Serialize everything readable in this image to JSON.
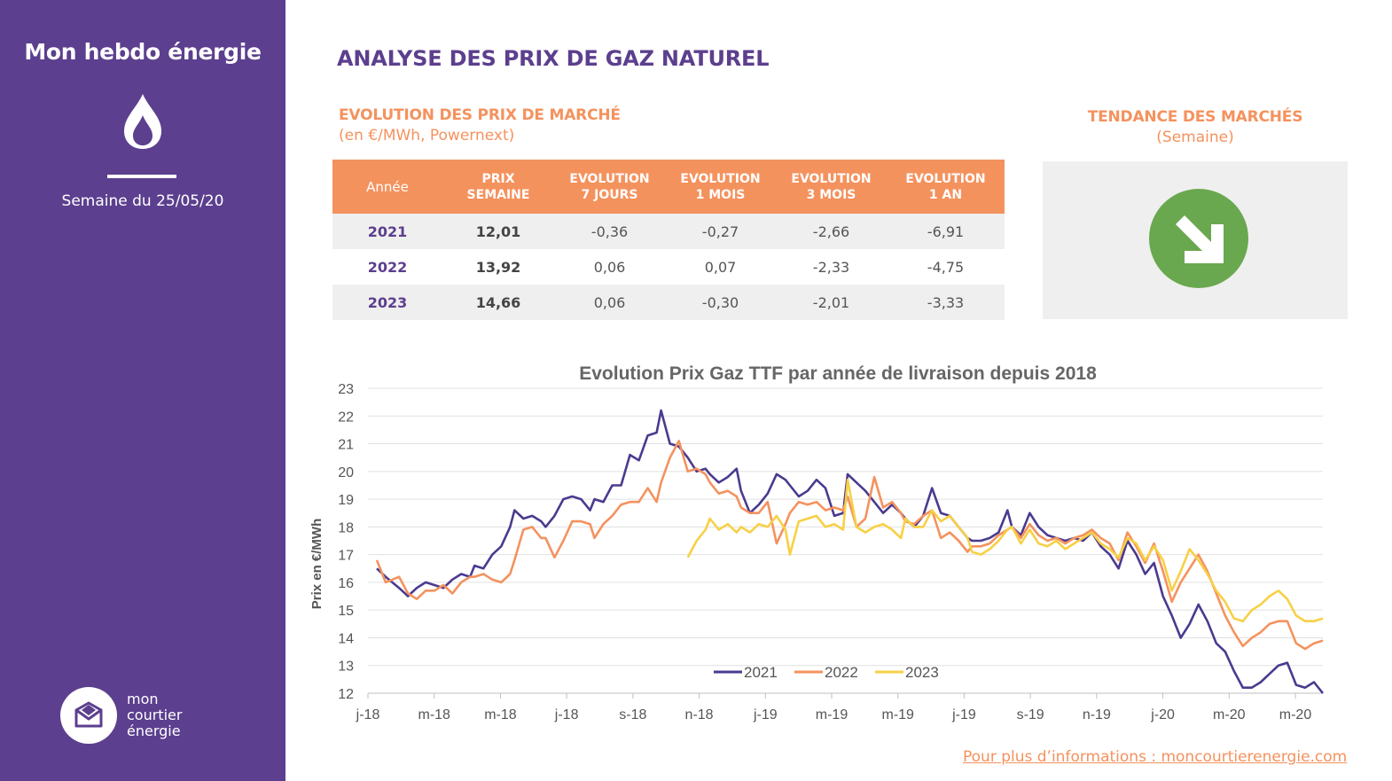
{
  "sidebar": {
    "title": "Mon hebdo énergie",
    "week_label": "Semaine du 25/05/20",
    "logo_lines": [
      "mon",
      "courtier",
      "énergie"
    ]
  },
  "main_title": "ANALYSE DES PRIX DE GAZ NATUREL",
  "market": {
    "title": "EVOLUTION DES PRIX DE MARCHÉ",
    "subtitle": "(en €/MWh, Powernext)",
    "headers": [
      [
        "Année"
      ],
      [
        "PRIX",
        "SEMAINE"
      ],
      [
        "EVOLUTION",
        "7 JOURS"
      ],
      [
        "EVOLUTION",
        "1 MOIS"
      ],
      [
        "EVOLUTION",
        "3 MOIS"
      ],
      [
        "EVOLUTION",
        "1 AN"
      ]
    ],
    "rows": [
      {
        "year": "2021",
        "price": "12,01",
        "d7": "-0,36",
        "m1": "-0,27",
        "m3": "-2,66",
        "y1": "-6,91"
      },
      {
        "year": "2022",
        "price": "13,92",
        "d7": "0,06",
        "m1": "0,07",
        "m3": "-2,33",
        "y1": "-4,75"
      },
      {
        "year": "2023",
        "price": "14,66",
        "d7": "0,06",
        "m1": "-0,30",
        "m3": "-2,01",
        "y1": "-3,33"
      }
    ]
  },
  "trend": {
    "title": "TENDANCE DES MARCHÉS",
    "subtitle": "(Semaine)",
    "direction": "down",
    "icon": "arrow-down-right-icon",
    "color": "#6aa84f"
  },
  "footer_link": "Pour plus d’informations : moncourtierenergie.com",
  "colors": {
    "purple": "#5c3f8e",
    "orange": "#f4925e",
    "series_2021": "#4b3a8f",
    "series_2022": "#f4925e",
    "series_2023": "#f7d046"
  },
  "chart_data": {
    "type": "line",
    "title": "Evolution Prix Gaz TTF par année de livraison depuis 2018",
    "xlabel": "",
    "ylabel": "Prix en €/MWh",
    "ylim": [
      12,
      23
    ],
    "yticks": [
      12,
      13,
      14,
      15,
      16,
      17,
      18,
      19,
      20,
      21,
      22,
      23
    ],
    "grid": true,
    "legend": "bottom-center",
    "x_tick_labels": [
      "j-18",
      "m-18",
      "m-18",
      "j-18",
      "s-18",
      "n-18",
      "j-19",
      "m-19",
      "m-19",
      "j-19",
      "s-19",
      "n-19",
      "j-20",
      "m-20",
      "m-20"
    ],
    "x_domain": [
      0,
      145
    ],
    "series": [
      {
        "name": "2021",
        "color": "#4b3a8f",
        "x": [
          2,
          4,
          7,
          9,
          11,
          13,
          15,
          17,
          19,
          21,
          23,
          24,
          26,
          28,
          30,
          32,
          33,
          35,
          37,
          39,
          40,
          42,
          44,
          46,
          48,
          50,
          51,
          53,
          55,
          57,
          59,
          61,
          63,
          65,
          66,
          68,
          70,
          72,
          74,
          76,
          77,
          79,
          81,
          83,
          84,
          86,
          88,
          90,
          92,
          94,
          95,
          97,
          99,
          101,
          103,
          105,
          107,
          108,
          110,
          112,
          114,
          116,
          118,
          120,
          121,
          123,
          125,
          127,
          129,
          131,
          133,
          135,
          136,
          138,
          140,
          142,
          144,
          145
        ],
        "y": [
          16.5,
          16.2,
          15.8,
          15.5,
          15.8,
          16.0,
          15.9,
          15.8,
          16.1,
          16.3,
          16.2,
          16.6,
          16.5,
          17.0,
          17.3,
          18.0,
          18.6,
          18.3,
          18.4,
          18.2,
          18.0,
          18.4,
          19.0,
          19.1,
          19.0,
          18.6,
          19.0,
          18.9,
          19.5,
          19.5,
          20.6,
          20.4,
          21.3,
          21.4,
          22.2,
          21.0,
          20.9,
          20.5,
          20.0,
          20.1,
          19.9,
          19.6,
          19.8,
          20.1,
          19.3,
          18.5,
          18.8,
          19.2,
          19.9,
          19.7,
          19.5,
          19.1,
          19.3,
          19.7,
          19.4,
          18.4,
          18.5,
          19.9,
          19.6,
          19.3,
          18.9,
          18.5,
          18.8,
          18.5,
          18.3,
          18.0,
          18.4,
          19.4,
          18.5,
          18.4,
          18.0,
          17.6,
          17.5,
          17.5,
          17.6,
          17.8,
          18.6,
          18.0
        ],
        "x2": [
          145,
          147,
          149,
          151,
          153,
          155,
          157,
          159,
          161,
          163,
          165,
          167,
          169,
          171,
          173,
          175,
          177,
          179,
          181,
          183,
          185,
          187,
          189,
          191,
          193,
          195,
          197,
          199,
          201,
          203,
          205,
          207,
          209,
          211,
          213,
          215
        ],
        "y2": [
          18.0,
          17.7,
          18.5,
          18.0,
          17.7,
          17.6,
          17.5,
          17.6,
          17.5,
          17.8,
          17.3,
          17.0,
          16.5,
          17.5,
          17.0,
          16.3,
          16.7,
          15.5,
          14.8,
          14.0,
          14.5,
          15.2,
          14.6,
          13.8,
          13.5,
          12.8,
          12.2,
          12.2,
          12.4,
          12.7,
          13.0,
          13.1,
          12.3,
          12.2,
          12.4,
          12.0
        ]
      },
      {
        "name": "2022",
        "color": "#f4925e",
        "x": [
          2,
          4,
          7,
          9,
          11,
          13,
          15,
          17,
          19,
          21,
          23,
          24,
          26,
          28,
          30,
          32,
          33,
          35,
          37,
          39,
          40,
          42,
          44,
          46,
          48,
          50,
          51,
          53,
          55,
          57,
          59,
          61,
          63,
          65,
          66,
          68,
          70,
          72,
          74,
          76,
          77,
          79,
          81,
          83,
          84,
          86,
          88,
          90,
          92,
          94,
          95,
          97,
          99,
          101,
          103,
          105,
          107,
          108,
          110,
          112,
          114,
          116,
          118,
          120,
          121,
          123,
          125,
          127,
          129,
          131,
          133,
          135,
          136,
          138,
          140,
          142,
          144,
          145
        ],
        "y": [
          16.8,
          16.0,
          16.2,
          15.6,
          15.4,
          15.7,
          15.7,
          15.9,
          15.6,
          16.0,
          16.2,
          16.2,
          16.3,
          16.1,
          16.0,
          16.3,
          16.8,
          17.9,
          18.0,
          17.6,
          17.6,
          16.9,
          17.5,
          18.2,
          18.2,
          18.1,
          17.6,
          18.1,
          18.4,
          18.8,
          18.9,
          18.9,
          19.4,
          18.9,
          19.6,
          20.5,
          21.1,
          20.0,
          20.1,
          19.9,
          19.6,
          19.2,
          19.3,
          19.1,
          18.7,
          18.5,
          18.5,
          18.9,
          17.4,
          18.1,
          18.5,
          18.9,
          18.8,
          18.9,
          18.6,
          18.7,
          18.6,
          19.1,
          18.0,
          18.3,
          19.8,
          18.7,
          18.9,
          18.5,
          18.2,
          18.1,
          18.4,
          18.6,
          17.6,
          17.8,
          17.5,
          17.1,
          17.3,
          17.3,
          17.4,
          17.7,
          17.9,
          18.0
        ],
        "x2": [
          145,
          147,
          149,
          151,
          153,
          155,
          157,
          159,
          161,
          163,
          165,
          167,
          169,
          171,
          173,
          175,
          177,
          179,
          181,
          183,
          185,
          187,
          189,
          191,
          193,
          195,
          197,
          199,
          201,
          203,
          205,
          207,
          209,
          211,
          213,
          215
        ],
        "y2": [
          18.0,
          17.6,
          18.1,
          17.7,
          17.5,
          17.6,
          17.4,
          17.6,
          17.7,
          17.9,
          17.6,
          17.4,
          16.8,
          17.8,
          17.3,
          16.7,
          17.4,
          16.4,
          15.3,
          16.0,
          16.5,
          17.0,
          16.4,
          15.6,
          14.8,
          14.2,
          13.7,
          14.0,
          14.2,
          14.5,
          14.6,
          14.6,
          13.8,
          13.6,
          13.8,
          13.9
        ]
      },
      {
        "name": "2023",
        "color": "#f7d046",
        "x": [
          72,
          74,
          76,
          77,
          79,
          81,
          83,
          84,
          86,
          88,
          90,
          92,
          94,
          95,
          97,
          99,
          101,
          103,
          105,
          107,
          108,
          110,
          112,
          114,
          116,
          118,
          120,
          121,
          123,
          125,
          127,
          129,
          131,
          133,
          135,
          136,
          138,
          140,
          142,
          144,
          145
        ],
        "y": [
          16.9,
          17.5,
          17.9,
          18.3,
          17.9,
          18.1,
          17.8,
          18.0,
          17.8,
          18.1,
          18.0,
          18.4,
          17.9,
          17.0,
          18.2,
          18.3,
          18.4,
          18.0,
          18.1,
          17.9,
          19.7,
          18.0,
          17.8,
          18.0,
          18.1,
          17.9,
          17.6,
          18.3,
          18.0,
          18.0,
          18.6,
          18.2,
          18.4,
          18.0,
          17.6,
          17.1,
          17.0,
          17.2,
          17.5,
          17.9,
          18.0
        ],
        "x2": [
          145,
          147,
          149,
          151,
          153,
          155,
          157,
          159,
          161,
          163,
          165,
          167,
          169,
          171,
          173,
          175,
          177,
          179,
          181,
          183,
          185,
          187,
          189,
          191,
          193,
          195,
          197,
          199,
          201,
          203,
          205,
          207,
          209,
          211,
          213,
          215
        ],
        "y2": [
          18.0,
          17.4,
          17.9,
          17.4,
          17.3,
          17.5,
          17.2,
          17.4,
          17.6,
          17.8,
          17.4,
          17.2,
          16.9,
          17.6,
          17.4,
          16.8,
          17.3,
          16.8,
          15.7,
          16.4,
          17.2,
          16.8,
          16.3,
          15.7,
          15.3,
          14.7,
          14.6,
          15.0,
          15.2,
          15.5,
          15.7,
          15.4,
          14.8,
          14.6,
          14.6,
          14.7
        ]
      }
    ]
  }
}
